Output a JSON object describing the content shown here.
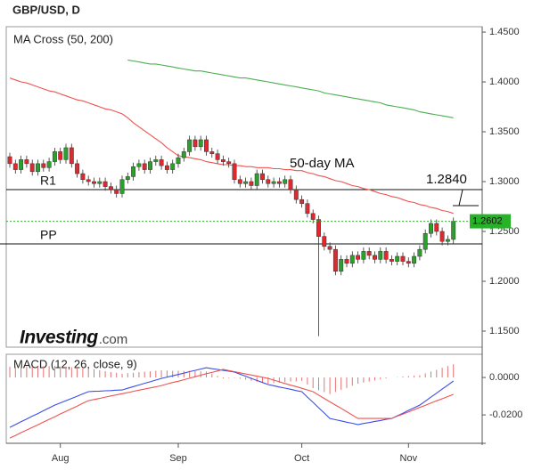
{
  "header": {
    "title": "GBP/USD, D"
  },
  "chart_data": [
    {
      "type": "candlestick",
      "title": "MA Cross (50, 200)",
      "categories": [
        null,
        null,
        null,
        null,
        null,
        null,
        null,
        null,
        null,
        "Aug",
        null,
        null,
        null,
        null,
        null,
        null,
        null,
        null,
        null,
        null,
        null,
        null,
        null,
        null,
        null,
        null,
        null,
        null,
        null,
        null,
        "Sep",
        null,
        null,
        null,
        null,
        null,
        null,
        null,
        null,
        null,
        null,
        null,
        null,
        null,
        null,
        null,
        null,
        null,
        null,
        null,
        null,
        null,
        "Oct",
        null,
        null,
        null,
        null,
        null,
        null,
        null,
        null,
        null,
        null,
        null,
        null,
        null,
        null,
        null,
        null,
        null,
        null,
        "Nov",
        null,
        null,
        null,
        null,
        null,
        null,
        null,
        null
      ],
      "open": [
        1.325,
        1.318,
        1.312,
        1.322,
        1.318,
        1.31,
        1.318,
        1.314,
        1.32,
        1.33,
        1.322,
        1.334,
        1.318,
        1.308,
        1.302,
        1.3,
        1.298,
        1.3,
        1.295,
        1.292,
        1.288,
        1.302,
        1.305,
        1.315,
        1.318,
        1.312,
        1.32,
        1.322,
        1.316,
        1.312,
        1.318,
        1.324,
        1.33,
        1.342,
        1.335,
        1.342,
        1.33,
        1.328,
        1.322,
        1.32,
        1.318,
        1.302,
        1.298,
        1.3,
        1.296,
        1.308,
        1.302,
        1.298,
        1.3,
        1.298,
        1.302,
        1.292,
        1.282,
        1.278,
        1.268,
        1.262,
        1.245,
        1.235,
        1.232,
        1.21,
        1.222,
        1.218,
        1.226,
        1.222,
        1.23,
        1.226,
        1.222,
        1.23,
        1.222,
        1.22,
        1.225,
        1.22,
        1.218,
        1.225,
        1.232,
        1.248,
        1.258,
        1.25,
        1.24,
        1.242
      ],
      "high": [
        1.329,
        1.322,
        1.326,
        1.326,
        1.322,
        1.322,
        1.322,
        1.324,
        1.334,
        1.334,
        1.338,
        1.338,
        1.322,
        1.312,
        1.306,
        1.304,
        1.304,
        1.304,
        1.299,
        1.296,
        1.306,
        1.309,
        1.319,
        1.322,
        1.322,
        1.324,
        1.326,
        1.326,
        1.32,
        1.322,
        1.328,
        1.334,
        1.346,
        1.346,
        1.346,
        1.346,
        1.334,
        1.332,
        1.326,
        1.324,
        1.322,
        1.306,
        1.304,
        1.304,
        1.312,
        1.312,
        1.306,
        1.304,
        1.304,
        1.306,
        1.306,
        1.296,
        1.286,
        1.282,
        1.272,
        1.266,
        1.249,
        1.239,
        1.236,
        1.226,
        1.226,
        1.23,
        1.23,
        1.234,
        1.234,
        1.23,
        1.234,
        1.234,
        1.226,
        1.229,
        1.229,
        1.224,
        1.229,
        1.236,
        1.252,
        1.262,
        1.262,
        1.254,
        1.246,
        1.264
      ],
      "low": [
        1.314,
        1.308,
        1.308,
        1.314,
        1.306,
        1.306,
        1.31,
        1.31,
        1.316,
        1.318,
        1.318,
        1.314,
        1.304,
        1.298,
        1.296,
        1.294,
        1.294,
        1.291,
        1.288,
        1.284,
        1.284,
        1.298,
        1.301,
        1.311,
        1.308,
        1.308,
        1.316,
        1.312,
        1.308,
        1.308,
        1.314,
        1.32,
        1.326,
        1.331,
        1.331,
        1.326,
        1.324,
        1.318,
        1.316,
        1.314,
        1.298,
        1.294,
        1.294,
        1.292,
        1.292,
        1.298,
        1.294,
        1.294,
        1.294,
        1.294,
        1.288,
        1.278,
        1.274,
        1.264,
        1.258,
        1.145,
        1.231,
        1.228,
        1.206,
        1.206,
        1.214,
        1.214,
        1.218,
        1.218,
        1.222,
        1.218,
        1.218,
        1.218,
        1.216,
        1.216,
        1.216,
        1.214,
        1.214,
        1.221,
        1.228,
        1.244,
        1.246,
        1.236,
        1.236,
        1.238
      ],
      "close": [
        1.318,
        1.312,
        1.322,
        1.318,
        1.31,
        1.318,
        1.314,
        1.32,
        1.33,
        1.322,
        1.334,
        1.318,
        1.308,
        1.302,
        1.3,
        1.298,
        1.3,
        1.295,
        1.292,
        1.288,
        1.302,
        1.305,
        1.315,
        1.318,
        1.312,
        1.32,
        1.322,
        1.316,
        1.312,
        1.318,
        1.324,
        1.33,
        1.342,
        1.335,
        1.342,
        1.33,
        1.328,
        1.322,
        1.32,
        1.318,
        1.302,
        1.298,
        1.3,
        1.296,
        1.308,
        1.302,
        1.298,
        1.3,
        1.298,
        1.302,
        1.292,
        1.282,
        1.278,
        1.268,
        1.262,
        1.245,
        1.235,
        1.232,
        1.21,
        1.222,
        1.218,
        1.226,
        1.222,
        1.23,
        1.226,
        1.222,
        1.23,
        1.222,
        1.22,
        1.225,
        1.22,
        1.218,
        1.225,
        1.232,
        1.248,
        1.258,
        1.25,
        1.24,
        1.242,
        1.2602
      ],
      "up_color": "#2ca02c",
      "down_color": "#e0282e",
      "series": [
        {
          "color": "#ef5350",
          "values": [
            1.404,
            1.402,
            1.4,
            1.399,
            1.397,
            1.395,
            1.393,
            1.391,
            1.39,
            1.388,
            1.386,
            1.384,
            1.382,
            1.381,
            1.379,
            1.377,
            1.375,
            1.373,
            1.372,
            1.37,
            1.368,
            1.364,
            1.359,
            1.355,
            1.351,
            1.347,
            1.343,
            1.339,
            1.334,
            1.33,
            1.326,
            1.325,
            1.324,
            1.323,
            1.322,
            1.32,
            1.319,
            1.318,
            1.317,
            1.317,
            1.316,
            1.316,
            1.315,
            1.315,
            1.314,
            1.314,
            1.314,
            1.313,
            1.313,
            1.312,
            1.312,
            1.311,
            1.311,
            1.309,
            1.308,
            1.306,
            1.305,
            1.303,
            1.301,
            1.3,
            1.298,
            1.296,
            1.295,
            1.293,
            1.292,
            1.29,
            1.288,
            1.287,
            1.285,
            1.284,
            1.282,
            1.28,
            1.279,
            1.277,
            1.276,
            1.274,
            1.273,
            1.271,
            1.27,
            1.268
          ]
        },
        {
          "color": "#4caf50",
          "values": [
            null,
            null,
            null,
            null,
            null,
            null,
            null,
            null,
            null,
            null,
            null,
            null,
            null,
            null,
            null,
            null,
            null,
            null,
            null,
            null,
            null,
            1.422,
            1.421,
            1.42,
            1.419,
            1.418,
            1.418,
            1.417,
            1.416,
            1.415,
            1.414,
            1.413,
            1.412,
            1.411,
            1.411,
            1.41,
            1.409,
            1.408,
            1.407,
            1.406,
            1.405,
            1.404,
            1.404,
            1.403,
            1.402,
            1.401,
            1.4,
            1.399,
            1.398,
            1.397,
            1.396,
            1.395,
            1.394,
            1.393,
            1.392,
            1.391,
            1.389,
            1.388,
            1.387,
            1.386,
            1.385,
            1.384,
            1.383,
            1.382,
            1.381,
            1.38,
            1.379,
            1.377,
            1.376,
            1.375,
            1.374,
            1.373,
            1.372,
            1.37,
            1.369,
            1.368,
            1.367,
            1.366,
            1.365,
            1.364
          ]
        }
      ],
      "levels": [
        {
          "label": "R1",
          "value": 1.292
        },
        {
          "label": "PP",
          "value": 1.2375
        }
      ],
      "last_price": {
        "value": 1.2602,
        "label": "1.2602",
        "color": "#27b327"
      },
      "annotations": [
        "50-day MA",
        "1.2840"
      ],
      "branding": {
        "name": "Investing",
        "suffix": ".com"
      },
      "ylim": [
        1.1339,
        1.4554
      ],
      "yticks": [
        {
          "value": 1.45,
          "label": "1.4500"
        },
        {
          "value": 1.4,
          "label": "1.4000"
        },
        {
          "value": 1.35,
          "label": "1.3500"
        },
        {
          "value": 1.3,
          "label": "1.3000"
        },
        {
          "value": 1.25,
          "label": "1.2500"
        },
        {
          "value": 1.2,
          "label": "1.2000"
        },
        {
          "value": 1.15,
          "label": "1.1500"
        }
      ]
    },
    {
      "type": "macd",
      "title": "MACD (12, 26, close, 9)",
      "series": [
        {
          "color": "#3a4ee8",
          "values": [
            -0.0267,
            -0.0252,
            -0.0237,
            -0.0222,
            -0.0207,
            -0.0193,
            -0.0178,
            -0.0163,
            -0.0148,
            -0.0136,
            -0.0124,
            -0.0112,
            -0.01,
            -0.0088,
            -0.0076,
            -0.0074,
            -0.0073,
            -0.0071,
            -0.007,
            -0.0068,
            -0.0067,
            -0.0058,
            -0.0049,
            -0.004,
            -0.0031,
            -0.0023,
            -0.0014,
            -0.0005,
            0.0002,
            0.0009,
            0.0016,
            0.0023,
            0.0031,
            0.0038,
            0.0045,
            0.0052,
            0.0047,
            0.0043,
            0.0038,
            0.0034,
            0.0029,
            0.0018,
            0.0007,
            -0.0005,
            -0.0016,
            -0.0027,
            -0.0038,
            -0.0044,
            -0.0051,
            -0.0057,
            -0.0063,
            -0.007,
            -0.0076,
            -0.0105,
            -0.0133,
            -0.0162,
            -0.019,
            -0.0219,
            -0.0226,
            -0.0232,
            -0.0239,
            -0.0245,
            -0.0252,
            -0.0246,
            -0.0241,
            -0.0235,
            -0.023,
            -0.0224,
            -0.0219,
            -0.0205,
            -0.0191,
            -0.0176,
            -0.0162,
            -0.0148,
            -0.0127,
            -0.0105,
            -0.0084,
            -0.0062,
            -0.0041,
            -0.0019
          ]
        },
        {
          "color": "#ef5350",
          "values": [
            -0.0324,
            -0.031,
            -0.0295,
            -0.0281,
            -0.0267,
            -0.0253,
            -0.0238,
            -0.0224,
            -0.021,
            -0.0195,
            -0.0181,
            -0.0167,
            -0.0153,
            -0.0138,
            -0.0124,
            -0.0118,
            -0.0112,
            -0.0105,
            -0.0099,
            -0.0093,
            -0.0087,
            -0.0081,
            -0.0074,
            -0.0068,
            -0.0062,
            -0.0056,
            -0.005,
            -0.0043,
            -0.0035,
            -0.0027,
            -0.002,
            -0.0012,
            -0.0004,
            0.0004,
            0.0012,
            0.002,
            0.0027,
            0.0035,
            0.0043,
            0.0037,
            0.0031,
            0.0025,
            0.0019,
            0.0013,
            0.0007,
            0.0001,
            -0.0005,
            -0.0014,
            -0.0023,
            -0.0032,
            -0.0041,
            -0.0049,
            -0.0058,
            -0.0067,
            -0.0076,
            -0.0094,
            -0.0112,
            -0.013,
            -0.0148,
            -0.0165,
            -0.0183,
            -0.0201,
            -0.0219,
            -0.0219,
            -0.0219,
            -0.0219,
            -0.0219,
            -0.0219,
            -0.0219,
            -0.0207,
            -0.0196,
            -0.0184,
            -0.0172,
            -0.016,
            -0.0149,
            -0.0137,
            -0.0125,
            -0.0114,
            -0.0102,
            -0.009
          ]
        },
        {
          "type": "histogram",
          "color": "#e57373",
          "values": [
            0.0057,
            0.0058,
            0.0058,
            0.0059,
            0.006,
            0.006,
            0.006,
            0.0061,
            0.0062,
            0.0059,
            0.0057,
            0.0055,
            0.0053,
            0.005,
            0.0048,
            0.0044,
            0.0039,
            0.0034,
            0.0029,
            0.0025,
            0.002,
            0.0023,
            0.0025,
            0.0028,
            0.0031,
            0.0033,
            0.0036,
            0.0038,
            0.0037,
            0.0036,
            0.0036,
            0.0035,
            0.0035,
            0.0034,
            0.0033,
            0.0032,
            0.002,
            0.0008,
            -0.0005,
            -0.0003,
            -0.0002,
            -0.0007,
            -0.0012,
            -0.0018,
            -0.0023,
            -0.0028,
            -0.0033,
            -0.003,
            -0.0028,
            -0.0025,
            -0.0022,
            -0.0021,
            -0.0018,
            -0.0038,
            -0.0057,
            -0.0068,
            -0.0078,
            -0.0089,
            -0.0078,
            -0.0067,
            -0.0056,
            -0.0044,
            -0.0033,
            -0.0027,
            -0.0022,
            -0.0016,
            -0.0011,
            -0.0005,
            0,
            0.0002,
            0.0005,
            0.0008,
            0.001,
            0.0012,
            0.0022,
            0.0032,
            0.0041,
            0.0052,
            0.0061,
            0.0071
          ]
        }
      ],
      "ylim": [
        -0.0352,
        0.0124
      ],
      "yticks": [
        {
          "value": 0,
          "label": "0.0000"
        },
        {
          "value": -0.02,
          "label": "-0.0200"
        }
      ]
    }
  ]
}
